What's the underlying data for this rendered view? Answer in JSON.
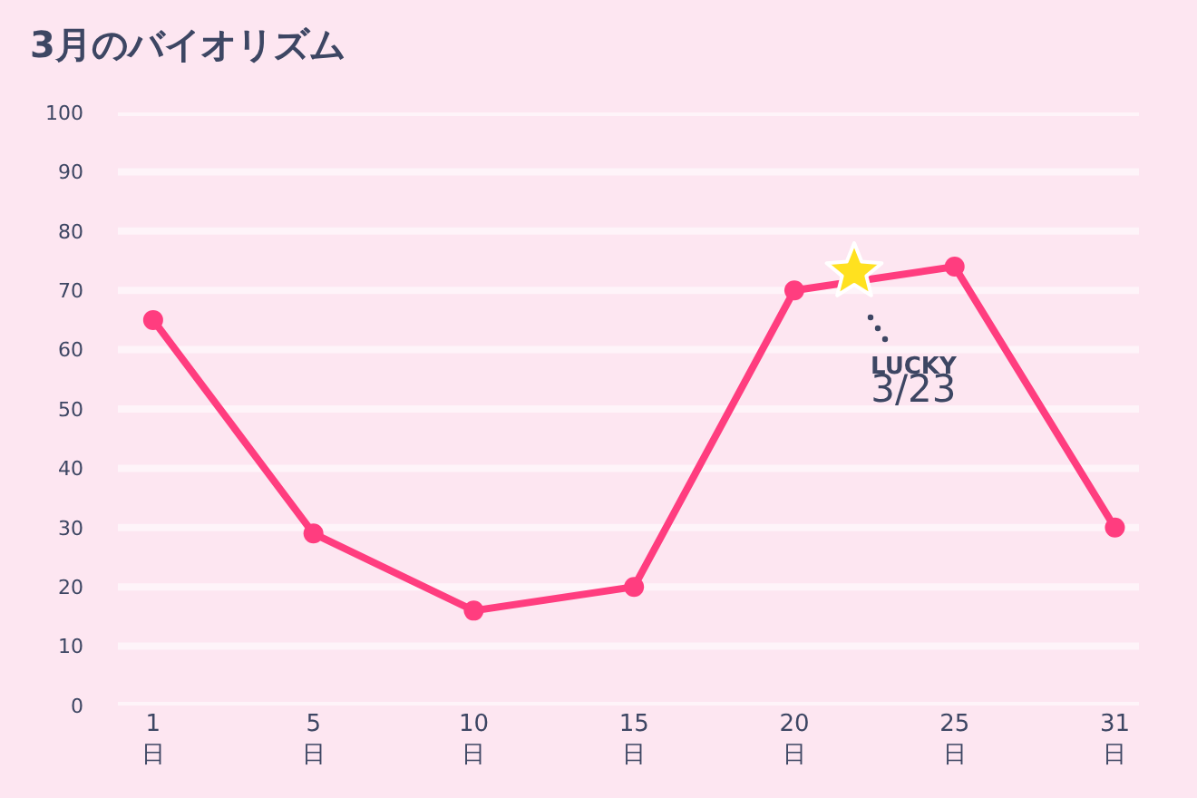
{
  "chart_data": {
    "type": "line",
    "title": "3月のバイオリズム",
    "categories": [
      "1\n日",
      "5\n日",
      "10\n日",
      "15\n日",
      "20\n日",
      "25\n日",
      "31\n日"
    ],
    "series": [
      {
        "color": "#ff3d7f",
        "values": [
          65,
          29,
          16,
          20,
          70,
          74,
          30
        ]
      }
    ],
    "ylim": [
      0,
      100
    ],
    "yticks": [
      0,
      10,
      20,
      30,
      40,
      50,
      60,
      70,
      80,
      90,
      100
    ],
    "grid": "y",
    "marker": "circle",
    "line_style": "solid",
    "annotations": [
      "LUCKY\n3/23"
    ]
  }
}
